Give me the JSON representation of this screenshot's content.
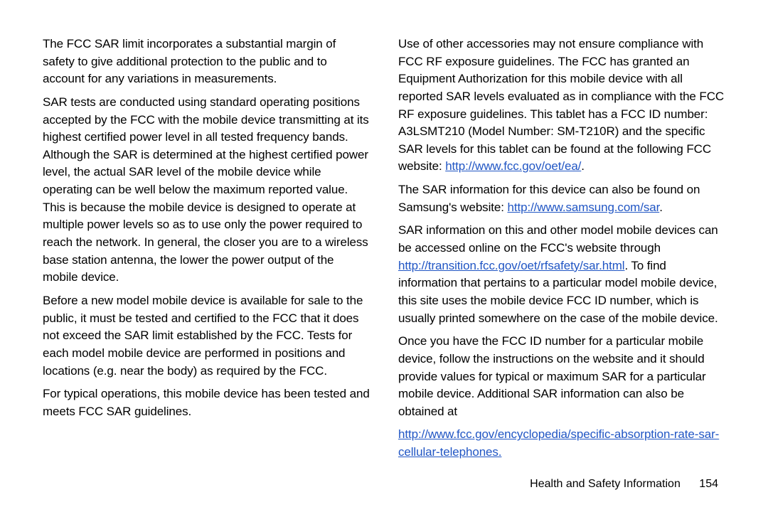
{
  "left": {
    "p1": "The FCC SAR limit incorporates a substantial margin of safety to give additional protection to the public and to account for any variations in measurements.",
    "p2": "SAR tests are conducted using standard operating positions accepted by the FCC with the mobile device transmitting at its highest certified power level in all tested frequency bands. Although the SAR is determined at the highest certified power level, the actual SAR level of the mobile device while operating can be well below the maximum reported value. This is because the mobile device is designed to operate at multiple power levels so as to use only the power required to reach the network. In general, the closer you are to a wireless base station antenna, the lower the power output of the mobile device.",
    "p3": "Before a new model mobile device is available for sale to the public, it must be tested and certified to the FCC that it does not exceed the SAR limit established by the FCC. Tests for each model mobile device are performed in positions and locations (e.g. near the body) as required by the FCC.",
    "p4": "For typical operations, this mobile device has been tested and meets FCC SAR guidelines."
  },
  "right": {
    "p1a": "Use of other accessories may not ensure compliance with FCC RF exposure guidelines. The FCC has granted an Equipment Authorization for this mobile device with all reported SAR levels evaluated as in compliance with the FCC RF exposure guidelines. This tablet has a FCC ID number: A3LSMT210 (Model Number: SM-T210R) and the specific SAR levels for this tablet can be found at the following FCC website: ",
    "p1link": "http://www.fcc.gov/oet/ea/",
    "p1b": ".",
    "p2a": "The SAR information for this device can also be found on Samsung's website: ",
    "p2link": "http://www.samsung.com/sar",
    "p2b": ".",
    "p3a": "SAR information on this and other model mobile devices can be accessed online on the FCC's website through ",
    "p3link": "http://transition.fcc.gov/oet/rfsafety/sar.html",
    "p3b": ". To find information that pertains to a particular model mobile device, this site uses the mobile device FCC ID number, which is usually printed somewhere on the case of the mobile device.",
    "p4": "Once you have the FCC ID number for a particular mobile device, follow the instructions on the website and it should provide values for typical or maximum SAR for a particular mobile device. Additional SAR information can also be obtained at",
    "p5link": "http://www.fcc.gov/encyclopedia/specific-absorption-rate-sar-cellular-telephones."
  },
  "footer": {
    "section": "Health and Safety Information",
    "page": "154"
  },
  "colors": {
    "text": "#000000",
    "link": "#2156c4",
    "background": "#ffffff"
  },
  "typography": {
    "body_fontsize": 17,
    "footer_fontsize": 16,
    "line_height": 1.45
  }
}
